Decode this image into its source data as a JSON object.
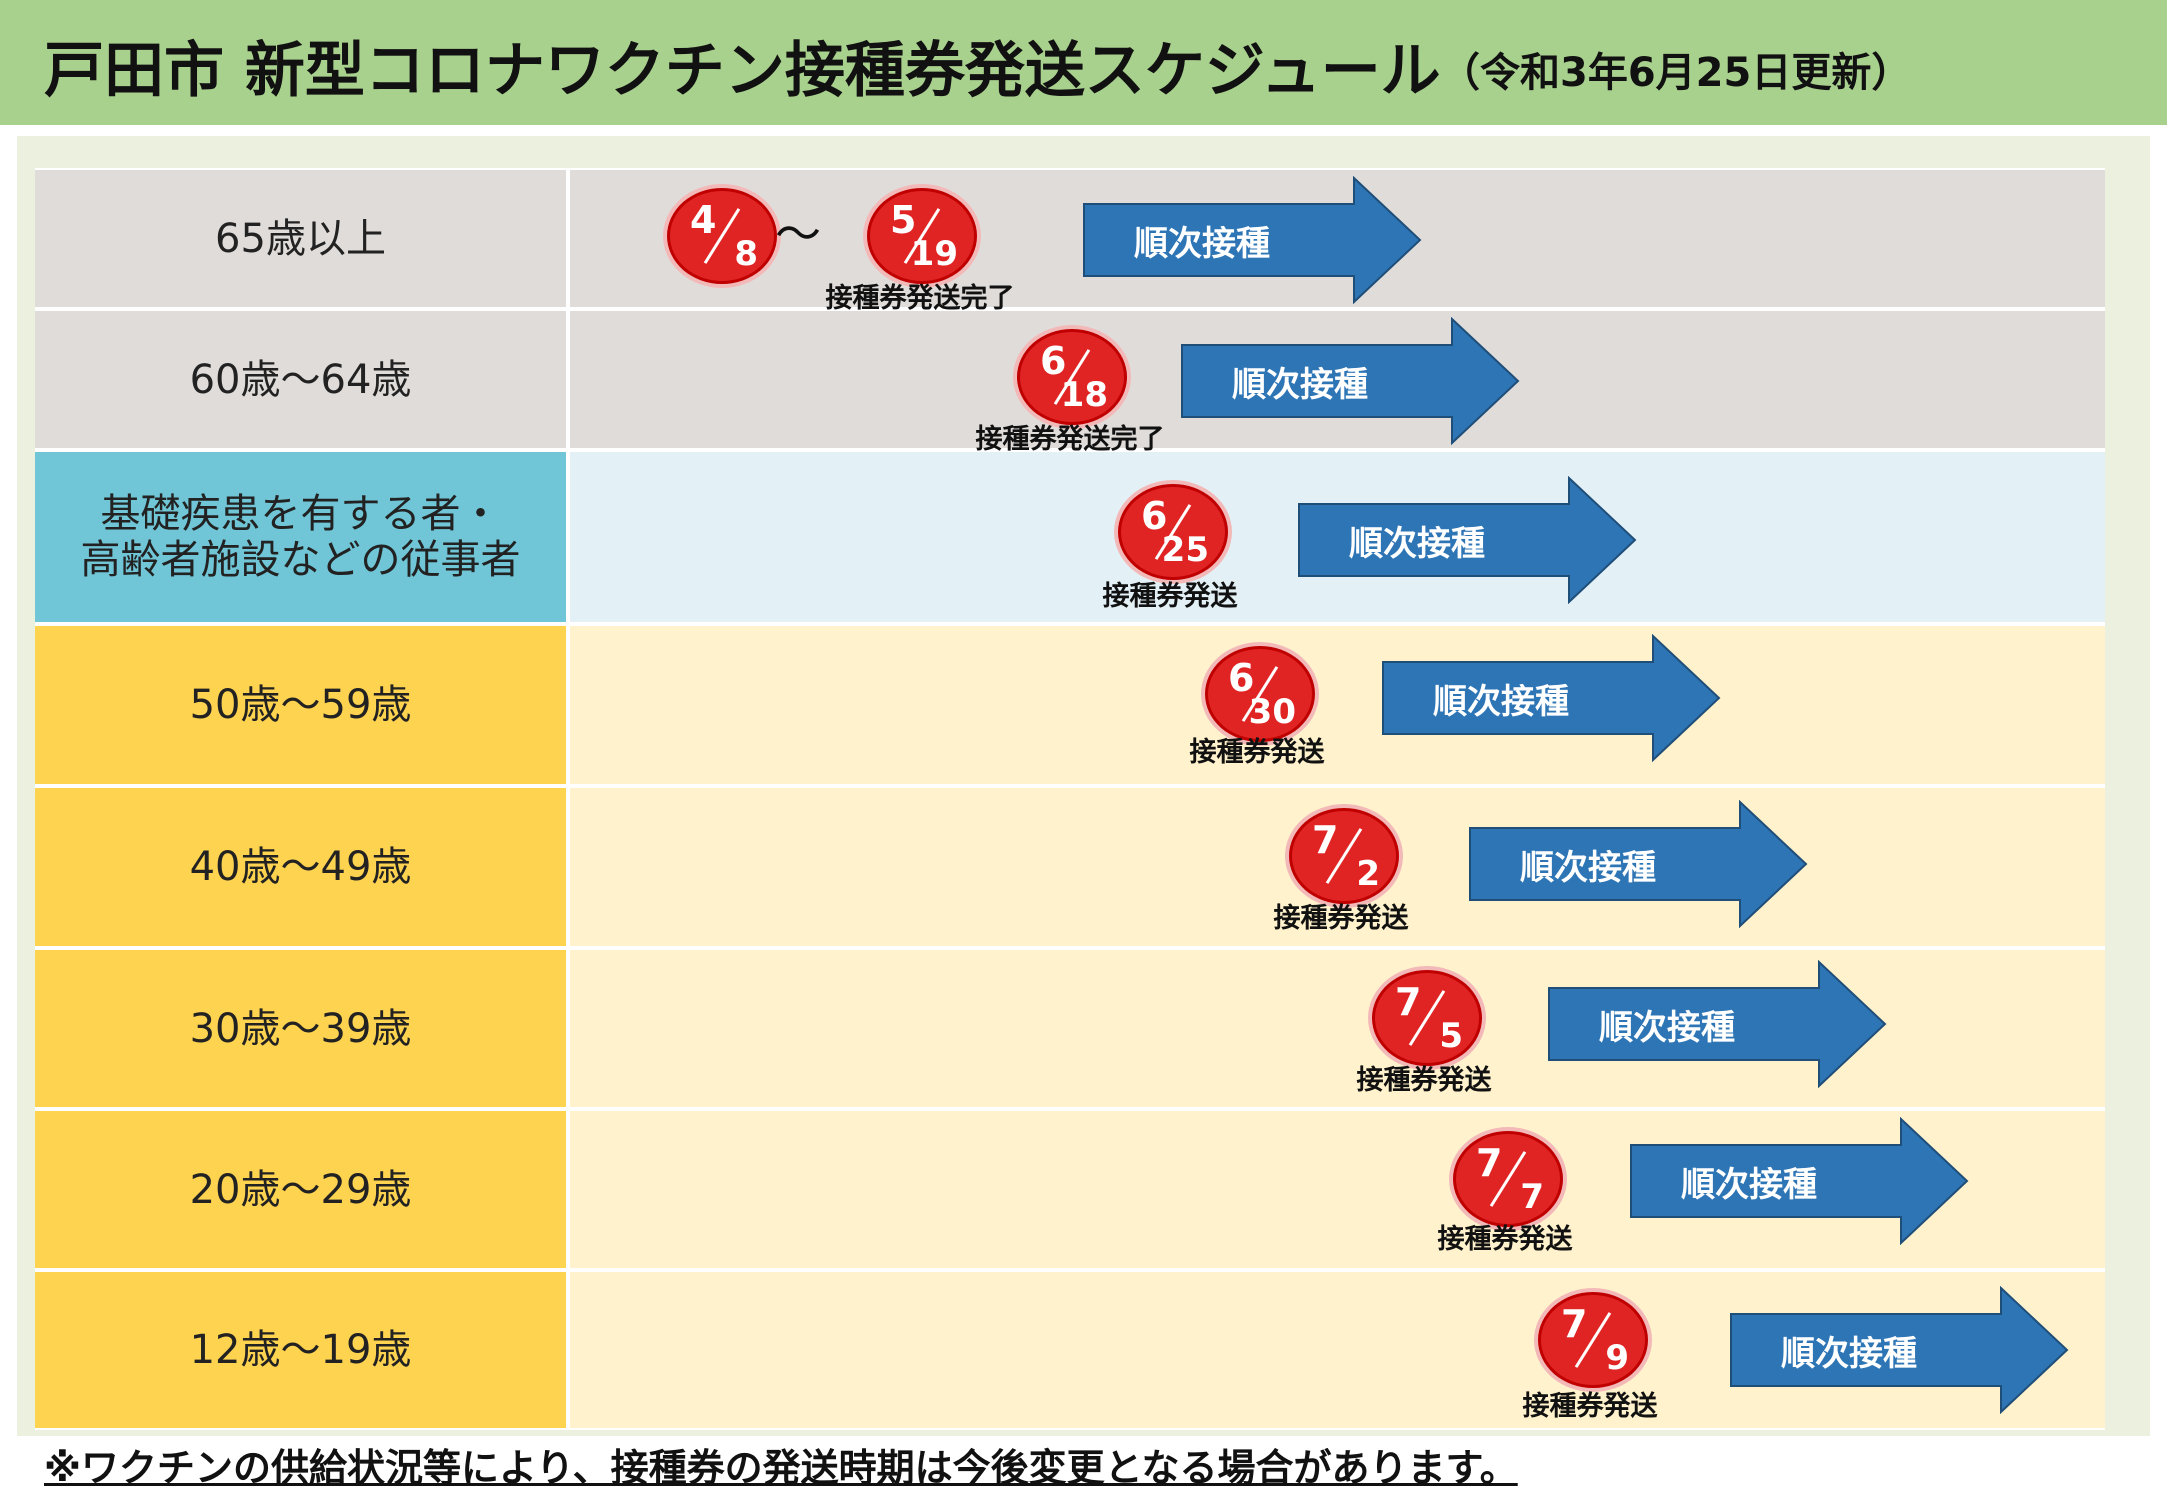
{
  "header": {
    "title": "戸田市 新型コロナワクチン接種券発送スケジュール",
    "updated": "（令和3年6月25日更新）"
  },
  "colors": {
    "header": "#a9d18e",
    "gray_row": "#e0dcd9",
    "blue_label": "#70c6d7",
    "blue_lane": "#e3f1f7",
    "yellow_label": "#fdd350",
    "yellow_lane": "#fff2cc",
    "date_circle": "#e02424",
    "arrow": "#2e75b6"
  },
  "arrow_label": "順次接種",
  "tilde": "～",
  "rows": [
    {
      "label": "65歳以上",
      "start": {
        "m": "4",
        "d": "8"
      },
      "end": {
        "m": "5",
        "d": "19"
      },
      "caption": "接種券発送完了"
    },
    {
      "label": "60歳～64歳",
      "date": {
        "m": "6",
        "d": "18"
      },
      "caption": "接種券発送完了"
    },
    {
      "label": "基礎疾患を有する者・\n高齢者施設などの従事者",
      "date": {
        "m": "6",
        "d": "25"
      },
      "caption": "接種券発送"
    },
    {
      "label": "50歳～59歳",
      "date": {
        "m": "6",
        "d": "30"
      },
      "caption": "接種券発送"
    },
    {
      "label": "40歳～49歳",
      "date": {
        "m": "7",
        "d": "2"
      },
      "caption": "接種券発送"
    },
    {
      "label": "30歳～39歳",
      "date": {
        "m": "7",
        "d": "5"
      },
      "caption": "接種券発送"
    },
    {
      "label": "20歳～29歳",
      "date": {
        "m": "7",
        "d": "7"
      },
      "caption": "接種券発送"
    },
    {
      "label": "12歳～19歳",
      "date": {
        "m": "7",
        "d": "9"
      },
      "caption": "接種券発送"
    }
  ],
  "note": "※ワクチンの供給状況等により、接種券の発送時期は今後変更となる場合があります。"
}
